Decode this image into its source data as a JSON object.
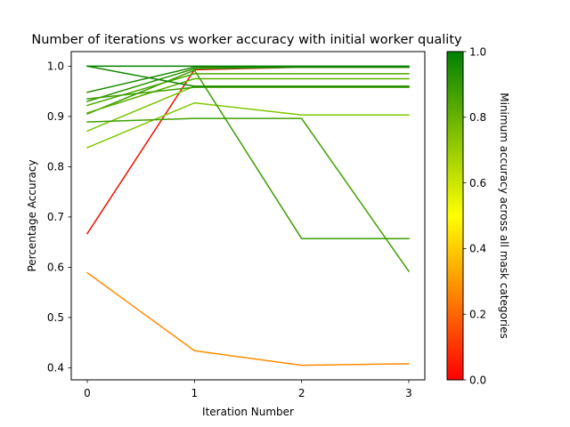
{
  "chart_data": {
    "type": "line",
    "title": "Number of iterations vs worker accuracy with initial worker quality",
    "xlabel": "Iteration Number",
    "ylabel": "Percentage Accuracy",
    "x": [
      0,
      1,
      2,
      3
    ],
    "x_ticks": [
      "0",
      "1",
      "2",
      "3"
    ],
    "ylim": [
      0.376,
      1.029
    ],
    "y_ticks": [
      0.4,
      0.5,
      0.6,
      0.7,
      0.8,
      0.9,
      1.0
    ],
    "y_tick_labels": [
      "0.4",
      "0.5",
      "0.6",
      "0.7",
      "0.8",
      "0.9",
      "1.0"
    ],
    "grid": false,
    "colorbar": {
      "label": "Minimum accuracy across all mask categories",
      "range": [
        0.0,
        1.0
      ],
      "ticks": [
        "0.0",
        "0.2",
        "0.4",
        "0.6",
        "0.8",
        "1.0"
      ],
      "colors": [
        "#ff0000",
        "#ffff00",
        "#008000"
      ]
    },
    "series": [
      {
        "values": [
          0.667,
          0.993,
          0.998,
          0.998
        ],
        "color": "#ee1000"
      },
      {
        "values": [
          0.589,
          0.434,
          0.405,
          0.408
        ],
        "color": "#ff8c00"
      },
      {
        "values": [
          0.838,
          0.927,
          0.903,
          0.903
        ],
        "color": "#7fc800"
      },
      {
        "values": [
          0.871,
          0.96,
          0.96,
          0.96
        ],
        "color": "#78c400"
      },
      {
        "values": [
          0.889,
          0.896,
          0.896,
          0.592
        ],
        "color": "#40a000"
      },
      {
        "values": [
          0.905,
          0.992,
          0.657,
          0.657
        ],
        "color": "#3a9c00"
      },
      {
        "values": [
          0.907,
          0.975,
          0.975,
          0.975
        ],
        "color": "#5cb000"
      },
      {
        "values": [
          0.922,
          0.985,
          0.985,
          0.985
        ],
        "color": "#4ea800"
      },
      {
        "values": [
          0.93,
          0.995,
          0.998,
          0.998
        ],
        "color": "#2c9400"
      },
      {
        "values": [
          0.935,
          0.958,
          0.958,
          0.958
        ],
        "color": "#3f9f00"
      },
      {
        "values": [
          0.948,
          0.998,
          0.998,
          0.998
        ],
        "color": "#1f8c00"
      },
      {
        "values": [
          1.0,
          0.96,
          0.96,
          0.96
        ],
        "color": "#128600"
      },
      {
        "values": [
          1.0,
          1.0,
          1.0,
          1.0
        ],
        "color": "#008000"
      }
    ]
  }
}
